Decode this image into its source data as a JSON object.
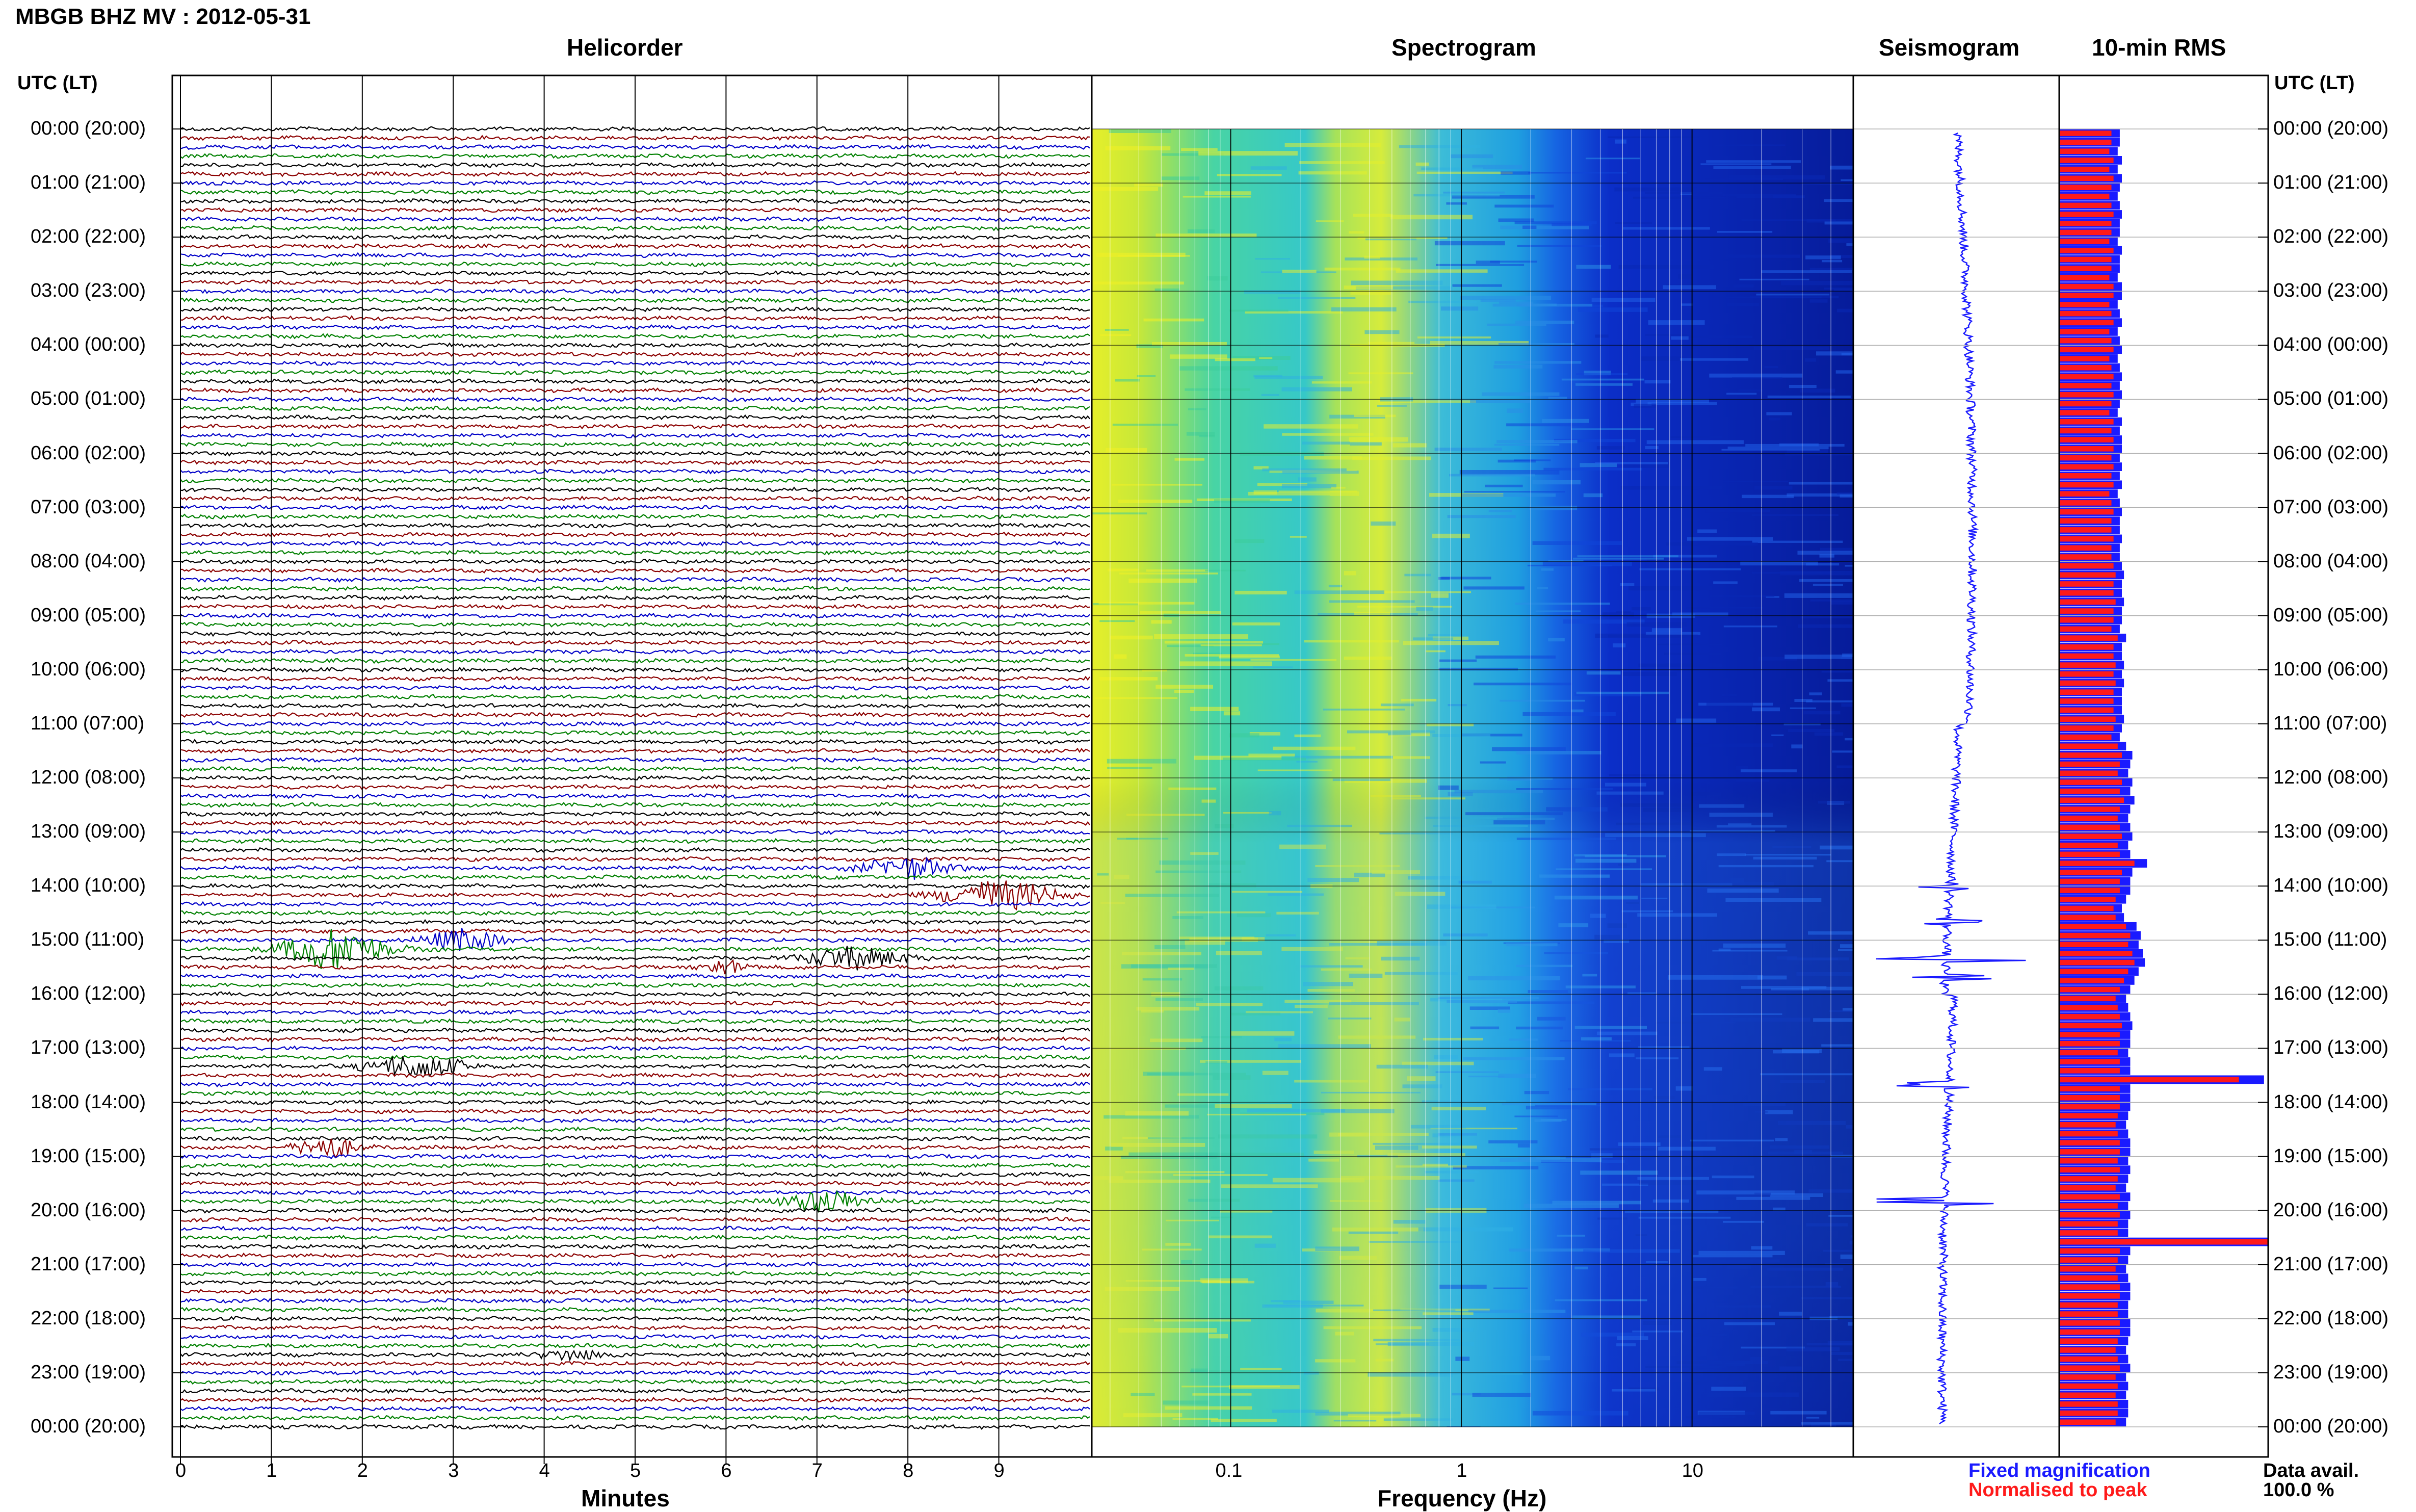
{
  "title": "MBGB BHZ MV : 2012-05-31",
  "panels": {
    "helicorder": "Helicorder",
    "spectrogram": "Spectrogram",
    "seismogram": "Seismogram",
    "rms": "10-min RMS"
  },
  "time_axis_label": "UTC (LT)",
  "time_labels": [
    "00:00 (20:00)",
    "01:00 (21:00)",
    "02:00 (22:00)",
    "03:00 (23:00)",
    "04:00 (00:00)",
    "05:00 (01:00)",
    "06:00 (02:00)",
    "07:00 (03:00)",
    "08:00 (04:00)",
    "09:00 (05:00)",
    "10:00 (06:00)",
    "11:00 (07:00)",
    "12:00 (08:00)",
    "13:00 (09:00)",
    "14:00 (10:00)",
    "15:00 (11:00)",
    "16:00 (12:00)",
    "17:00 (13:00)",
    "18:00 (14:00)",
    "19:00 (15:00)",
    "20:00 (16:00)",
    "21:00 (17:00)",
    "22:00 (18:00)",
    "23:00 (19:00)",
    "00:00 (20:00)"
  ],
  "x_axes": {
    "minutes": {
      "label": "Minutes",
      "ticks": [
        "0",
        "1",
        "2",
        "3",
        "4",
        "5",
        "6",
        "7",
        "8",
        "9"
      ]
    },
    "frequency": {
      "label": "Frequency (Hz)",
      "ticks": [
        "0.1",
        "1",
        "10"
      ]
    }
  },
  "legend": {
    "fixed": "Fixed magnification",
    "normalised": "Normalised to peak",
    "avail_label": "Data avail.",
    "avail_value": "100.0 %"
  },
  "colors": {
    "trace_cycle": [
      "#000000",
      "#8b0000",
      "#0000c8",
      "#008000"
    ],
    "fixed": "#1a1aff",
    "normalised": "#ff1a1a"
  },
  "chart_data": [
    {
      "type": "line",
      "title": "Helicorder",
      "xlabel": "Minutes",
      "xlim": [
        0,
        10
      ],
      "rows_per_hour": 6,
      "events": [
        {
          "hour": 13.67,
          "minute": 8.0,
          "amp": 3,
          "width": 0.7
        },
        {
          "hour": 14.17,
          "minute": 9.0,
          "amp": 4,
          "width": 0.9
        },
        {
          "hour": 15.17,
          "minute": 1.7,
          "amp": 6,
          "width": 0.8
        },
        {
          "hour": 15.0,
          "minute": 3.1,
          "amp": 3,
          "width": 0.6
        },
        {
          "hour": 15.33,
          "minute": 7.4,
          "amp": 3,
          "width": 0.8
        },
        {
          "hour": 15.5,
          "minute": 6.0,
          "amp": 2,
          "width": 0.4
        },
        {
          "hour": 17.33,
          "minute": 2.6,
          "amp": 3,
          "width": 0.8
        },
        {
          "hour": 18.83,
          "minute": 1.6,
          "amp": 3,
          "width": 0.5
        },
        {
          "hour": 19.83,
          "minute": 7.1,
          "amp": 3,
          "width": 0.7
        },
        {
          "hour": 22.67,
          "minute": 4.3,
          "amp": 1.5,
          "width": 0.5
        }
      ]
    },
    {
      "type": "heatmap",
      "title": "Spectrogram",
      "xlabel": "Frequency (Hz)",
      "xscale": "log",
      "xlim": [
        0.025,
        50
      ]
    },
    {
      "type": "line",
      "title": "Seismogram",
      "bursts": [
        {
          "hour": 14.0,
          "amp": 1.2
        },
        {
          "hour": 14.67,
          "amp": 1.5
        },
        {
          "hour": 15.33,
          "amp": 3.5
        },
        {
          "hour": 15.67,
          "amp": 2.0
        },
        {
          "hour": 17.67,
          "amp": 2.0
        },
        {
          "hour": 19.83,
          "amp": 2.5
        }
      ]
    },
    {
      "type": "bar",
      "title": "10-min RMS",
      "series": [
        {
          "name": "Fixed magnification",
          "values": [
            0.29,
            0.29,
            0.28,
            0.3,
            0.28,
            0.3,
            0.29,
            0.28,
            0.29,
            0.3,
            0.29,
            0.29,
            0.28,
            0.3,
            0.29,
            0.29,
            0.28,
            0.3,
            0.3,
            0.28,
            0.29,
            0.3,
            0.28,
            0.29,
            0.3,
            0.28,
            0.29,
            0.3,
            0.29,
            0.3,
            0.29,
            0.28,
            0.3,
            0.29,
            0.3,
            0.3,
            0.29,
            0.3,
            0.29,
            0.3,
            0.28,
            0.29,
            0.3,
            0.29,
            0.29,
            0.3,
            0.29,
            0.29,
            0.3,
            0.31,
            0.3,
            0.3,
            0.31,
            0.3,
            0.3,
            0.29,
            0.32,
            0.3,
            0.3,
            0.31,
            0.3,
            0.31,
            0.3,
            0.3,
            0.3,
            0.31,
            0.3,
            0.29,
            0.32,
            0.35,
            0.34,
            0.33,
            0.35,
            0.34,
            0.36,
            0.34,
            0.33,
            0.34,
            0.35,
            0.33,
            0.34,
            0.42,
            0.35,
            0.34,
            0.34,
            0.32,
            0.3,
            0.31,
            0.37,
            0.39,
            0.38,
            0.4,
            0.41,
            0.38,
            0.36,
            0.34,
            0.32,
            0.33,
            0.34,
            0.35,
            0.34,
            0.34,
            0.33,
            0.34,
            0.34,
            0.98,
            0.34,
            0.34,
            0.34,
            0.33,
            0.32,
            0.33,
            0.34,
            0.34,
            0.33,
            0.34,
            0.33,
            0.32,
            0.34,
            0.33,
            0.34,
            0.33,
            0.33,
            1.0,
            0.34,
            0.33,
            0.32,
            0.33,
            0.34,
            0.34,
            0.33,
            0.33,
            0.34,
            0.34,
            0.33,
            0.32,
            0.33,
            0.34,
            0.32,
            0.33,
            0.32,
            0.33,
            0.33,
            0.32
          ]
        },
        {
          "name": "Normalised to peak",
          "values": [
            0.25,
            0.25,
            0.24,
            0.26,
            0.24,
            0.26,
            0.25,
            0.24,
            0.25,
            0.26,
            0.25,
            0.25,
            0.24,
            0.26,
            0.25,
            0.25,
            0.24,
            0.26,
            0.26,
            0.24,
            0.25,
            0.26,
            0.24,
            0.25,
            0.26,
            0.24,
            0.25,
            0.26,
            0.25,
            0.26,
            0.25,
            0.24,
            0.26,
            0.25,
            0.26,
            0.26,
            0.25,
            0.26,
            0.25,
            0.26,
            0.24,
            0.25,
            0.26,
            0.25,
            0.25,
            0.26,
            0.25,
            0.25,
            0.26,
            0.27,
            0.26,
            0.26,
            0.27,
            0.26,
            0.26,
            0.25,
            0.28,
            0.26,
            0.26,
            0.27,
            0.26,
            0.27,
            0.26,
            0.26,
            0.26,
            0.27,
            0.26,
            0.25,
            0.28,
            0.3,
            0.29,
            0.28,
            0.3,
            0.29,
            0.31,
            0.29,
            0.28,
            0.29,
            0.3,
            0.28,
            0.29,
            0.36,
            0.3,
            0.29,
            0.29,
            0.27,
            0.26,
            0.27,
            0.32,
            0.34,
            0.33,
            0.35,
            0.36,
            0.33,
            0.31,
            0.29,
            0.27,
            0.28,
            0.29,
            0.3,
            0.29,
            0.29,
            0.28,
            0.29,
            0.29,
            0.86,
            0.29,
            0.29,
            0.29,
            0.28,
            0.27,
            0.28,
            0.29,
            0.29,
            0.28,
            0.29,
            0.28,
            0.27,
            0.29,
            0.28,
            0.29,
            0.28,
            0.28,
            1.0,
            0.29,
            0.28,
            0.27,
            0.28,
            0.29,
            0.29,
            0.28,
            0.28,
            0.29,
            0.29,
            0.28,
            0.27,
            0.28,
            0.29,
            0.27,
            0.28,
            0.27,
            0.28,
            0.28,
            0.27
          ]
        }
      ]
    }
  ]
}
